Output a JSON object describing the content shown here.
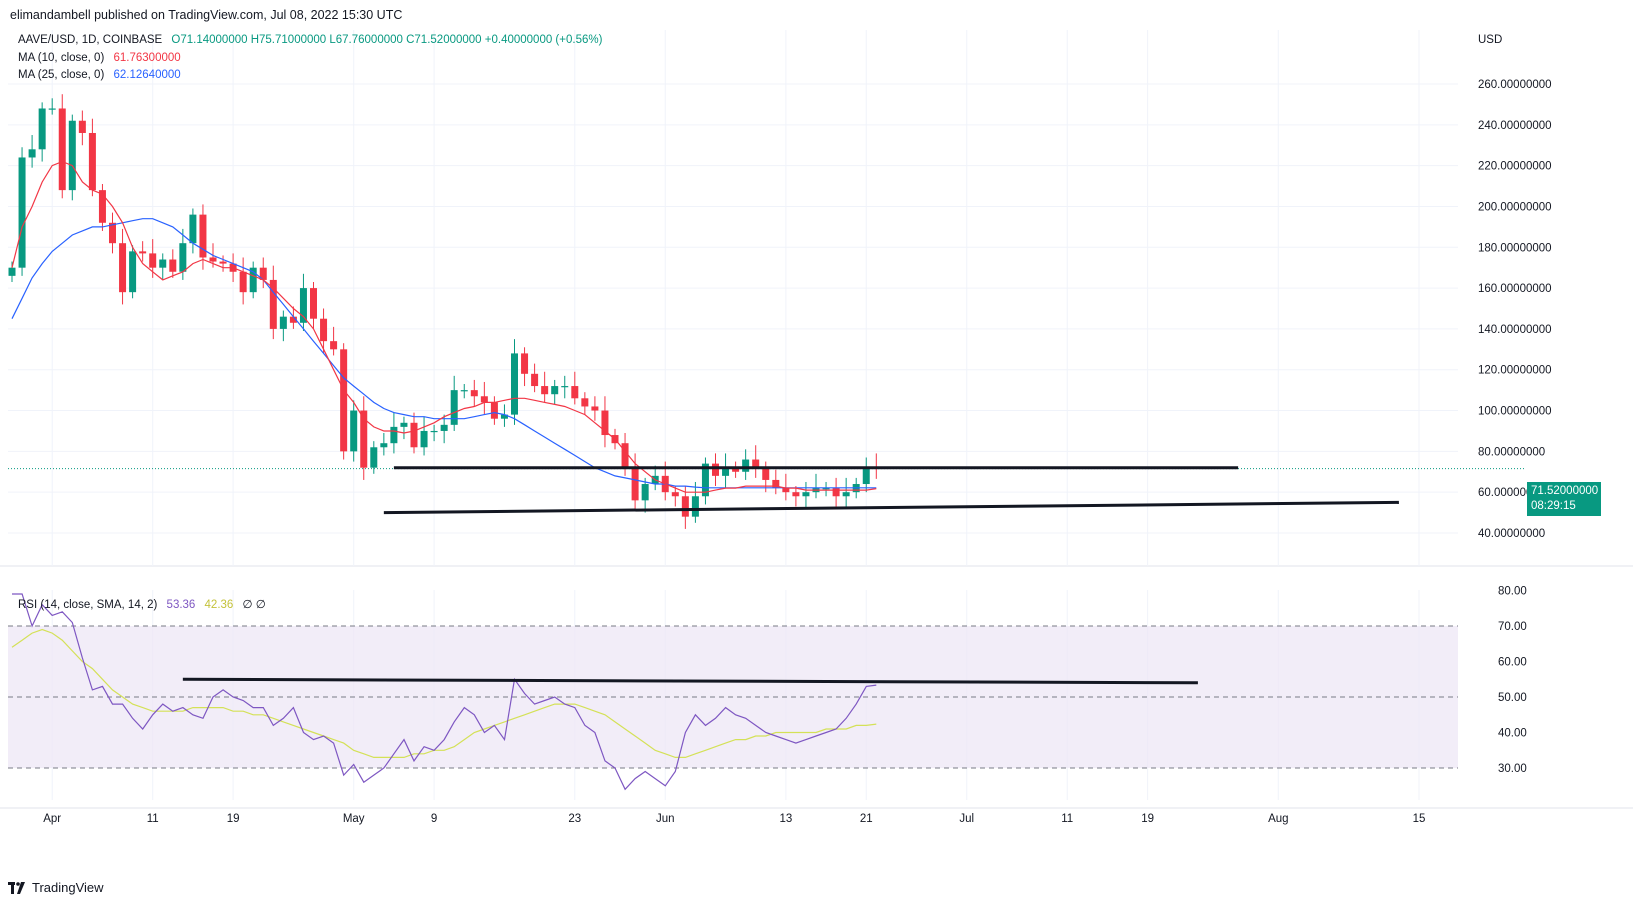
{
  "attribution": "elimandambell published on TradingView.com, Jul 08, 2022 15:30 UTC",
  "legend": {
    "symbol": "AAVE/USD, 1D, COINBASE",
    "ohlc": "O71.14000000  H75.71000000  L67.76000000  C71.52000000  +0.40000000 (+0.56%)",
    "ma10_label": "MA (10, close, 0)",
    "ma10_value": "61.76300000",
    "ma25_label": "MA (25, close, 0)",
    "ma25_value": "62.12640000",
    "rsi_label": "RSI (14, close, SMA, 14, 2)",
    "rsi_value": "53.36",
    "rsi_sma_value": "42.36",
    "rsi_extra": "∅  ∅"
  },
  "price_tag": {
    "price": "71.52000000",
    "countdown": "08:29:15"
  },
  "footer": {
    "brand": "TradingView"
  },
  "colors": {
    "up": "#089981",
    "down": "#f23645",
    "ma10": "#f23645",
    "ma25": "#2962ff",
    "rsi": "#7e57c2",
    "rsi_sma": "#d4e157",
    "band": "#ede7f6"
  },
  "chart_data": [
    {
      "type": "candlestick",
      "currency_label": "USD",
      "y_ticks": [
        "260.00000000",
        "240.00000000",
        "220.00000000",
        "200.00000000",
        "180.00000000",
        "160.00000000",
        "140.00000000",
        "120.00000000",
        "100.00000000",
        "80.00000000",
        "60.00000000",
        "40.00000000"
      ],
      "y_range": [
        40,
        260
      ],
      "x_ticks": [
        "Apr",
        "11",
        "19",
        "May",
        "9",
        "23",
        "Jun",
        "13",
        "21",
        "Jul",
        "11",
        "19",
        "Aug",
        "15"
      ],
      "date_range": [
        "2022-03-28",
        "2022-07-08"
      ],
      "closes": [
        170,
        224,
        228,
        248,
        248,
        208,
        242,
        236,
        208,
        192,
        182,
        158,
        178,
        177,
        170,
        174,
        168,
        182,
        196,
        175,
        173,
        172,
        168,
        158,
        170,
        164,
        140,
        146,
        143,
        160,
        145,
        134,
        130,
        80,
        100,
        72,
        82,
        84,
        92,
        94,
        82,
        90,
        90,
        93,
        110,
        110,
        107,
        104,
        96,
        98,
        128,
        118,
        112,
        108,
        112,
        112,
        106,
        102,
        100,
        88,
        84,
        72,
        56,
        64,
        68,
        60,
        58,
        48,
        58,
        74,
        68,
        72,
        70,
        76,
        72,
        66,
        62,
        60,
        58,
        60,
        62,
        62,
        58,
        60,
        64,
        72,
        71.52
      ],
      "ma10": [
        170,
        190,
        200,
        212,
        220,
        222,
        220,
        212,
        208,
        206,
        200,
        192,
        180,
        172,
        168,
        164,
        166,
        168,
        172,
        174,
        172,
        170,
        170,
        168,
        166,
        164,
        160,
        155,
        150,
        146,
        140,
        130,
        120,
        110,
        104,
        96,
        92,
        90,
        90,
        89,
        90,
        92,
        94,
        97,
        99,
        101,
        102,
        104,
        104,
        105,
        106,
        106,
        105,
        104,
        103,
        102,
        100,
        98,
        94,
        90,
        86,
        80,
        74,
        70,
        66,
        64,
        62,
        60,
        60,
        60,
        61,
        62,
        62,
        63,
        63,
        63,
        63,
        62,
        62,
        61,
        61,
        61,
        61,
        61,
        61,
        61,
        61.76
      ],
      "ma25": [
        145,
        155,
        165,
        172,
        178,
        182,
        186,
        188,
        190,
        190,
        191,
        192,
        193,
        194,
        194,
        192,
        190,
        186,
        182,
        179,
        176,
        174,
        172,
        170,
        168,
        164,
        158,
        152,
        146,
        140,
        134,
        128,
        122,
        116,
        112,
        108,
        104,
        101,
        99,
        98,
        97,
        97,
        96,
        96,
        96,
        96,
        97,
        98,
        99,
        98,
        96,
        93,
        90,
        87,
        84,
        81,
        78,
        75,
        72,
        70,
        68,
        67,
        66,
        65,
        64,
        64,
        63,
        63,
        62.5,
        62.13,
        62.13,
        62.13,
        62.13,
        62.13,
        62.13,
        62.13,
        62.13,
        62.13,
        62.13,
        62.13,
        62.13,
        62.13,
        62.13,
        62.13,
        62.13,
        62.13,
        62.13
      ],
      "annotations": [
        {
          "type": "horizontal_line",
          "price": 72,
          "from": "2022-05-05",
          "to": "2022-07-28"
        },
        {
          "type": "trend_line",
          "from_price": 50,
          "to_price": 55,
          "from": "2022-05-04",
          "to": "2022-08-13"
        }
      ]
    },
    {
      "type": "line",
      "title": "RSI",
      "y_ticks": [
        "80.00",
        "70.00",
        "60.00",
        "50.00",
        "40.00",
        "30.00"
      ],
      "y_range": [
        25,
        82
      ],
      "levels": [
        30,
        50,
        70
      ],
      "rsi": [
        79,
        79,
        70,
        76,
        73,
        74,
        71,
        61,
        52,
        53,
        48,
        48,
        44,
        41,
        45,
        48,
        46,
        47,
        45,
        44,
        50,
        52,
        50,
        49,
        47,
        47,
        42,
        44,
        47,
        40,
        38,
        39,
        37,
        28,
        31,
        26,
        28,
        30,
        34,
        38,
        32,
        36,
        35,
        38,
        43,
        47,
        45,
        40,
        42,
        38,
        55,
        51,
        48,
        49,
        50,
        48,
        47,
        42,
        40,
        32,
        30,
        24,
        27,
        29,
        27,
        25,
        29,
        40,
        45,
        42,
        44,
        47,
        45,
        44,
        42,
        40,
        39,
        38,
        37,
        38,
        39,
        40,
        41,
        44,
        48,
        53,
        53.36
      ],
      "rsi_sma": [
        64,
        66,
        68,
        69,
        68,
        66,
        63,
        60,
        58,
        55,
        52,
        50,
        48,
        47,
        46,
        46,
        46,
        46,
        47,
        47,
        47,
        47,
        46,
        46,
        45,
        45,
        44,
        43,
        42,
        41,
        40,
        39,
        38,
        37,
        35,
        34,
        33,
        33,
        33,
        33,
        34,
        34,
        35,
        35,
        36,
        38,
        40,
        41,
        42,
        43,
        44,
        45,
        46,
        47,
        48,
        48,
        48,
        47,
        46,
        45,
        43,
        41,
        39,
        37,
        35,
        34,
        33,
        33,
        34,
        35,
        36,
        37,
        38,
        38,
        39,
        39,
        40,
        40,
        40,
        40,
        40,
        41,
        41,
        41,
        42,
        42,
        42.36
      ],
      "annotations": [
        {
          "type": "trend_line",
          "from_value": 55,
          "to_value": 54,
          "from": "2022-04-14",
          "to": "2022-07-24"
        }
      ]
    }
  ]
}
